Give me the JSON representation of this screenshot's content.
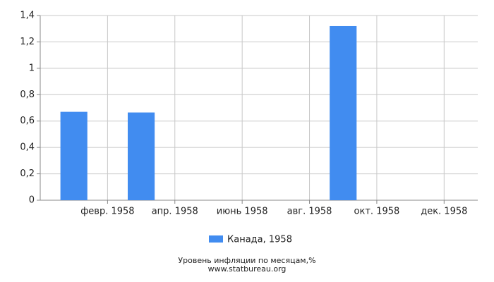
{
  "chart_data": {
    "type": "bar",
    "categories": [
      null,
      "февр. 1958",
      null,
      "апр. 1958",
      null,
      "июнь 1958",
      null,
      "авг. 1958",
      null,
      "окт. 1958",
      null,
      "дек. 1958"
    ],
    "series": [
      {
        "name": "Канада, 1958",
        "color": "#418cf0",
        "values": [
          0.67,
          0,
          0.665,
          0,
          0,
          0,
          0,
          0,
          1.32,
          0,
          0,
          0
        ]
      }
    ],
    "ylim": [
      0,
      1.4
    ],
    "yticks": [
      0,
      {
        "value": 0.2,
        "label": "0,2"
      },
      {
        "value": 0.4,
        "label": "0,4"
      },
      {
        "value": 0.6,
        "label": "0,6"
      },
      {
        "value": 0.8,
        "label": "0,8"
      },
      1,
      {
        "value": 1.2,
        "label": "1,2"
      },
      {
        "value": 1.4,
        "label": "1,4"
      }
    ],
    "grid": true,
    "xlabel": "Уровень инфляции по месяцам,%",
    "source": "www.statbureau.org"
  }
}
